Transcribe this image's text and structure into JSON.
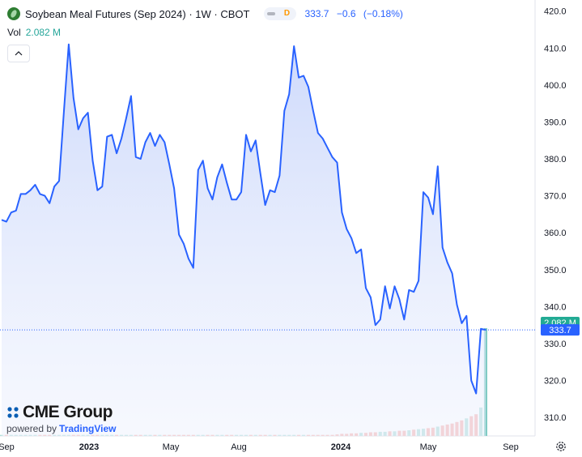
{
  "header": {
    "title": "Soybean Meal Futures (Sep 2024) · 1W · CBOT",
    "pill_label": "D",
    "last": "333.7",
    "change": "−0.6",
    "change_pct": "(−0.18%)"
  },
  "volume": {
    "label": "Vol",
    "value": "2.082 M"
  },
  "branding": {
    "logo": "CME Group",
    "powered_by": "powered by",
    "platform": "TradingView"
  },
  "icons": {
    "collapse": "chevron-up-icon",
    "settings": "gear-icon",
    "symbol": "soybean-leaf-icon"
  },
  "colors": {
    "line": "#2962ff",
    "fill": "#dfe7fd",
    "volume_up": "#26a69a",
    "volume_down": "#ef5350",
    "price_label": "#22ab94",
    "last_label": "#2962ff"
  },
  "chart_data": {
    "type": "area",
    "y_axis": {
      "min": 305,
      "max": 423,
      "ticks": [
        310,
        320,
        330,
        340,
        350,
        360,
        370,
        380,
        390,
        400,
        410,
        420
      ],
      "position": "right"
    },
    "x_axis": {
      "labels": [
        "Sep",
        "2023",
        "May",
        "Aug",
        "2024",
        "May",
        "Sep"
      ]
    },
    "price_labels": {
      "volume": "2.082 M",
      "last": "333.7"
    },
    "series": [
      {
        "values": [
          363.5,
          363,
          365.5,
          366,
          370.5,
          370.5,
          371.5,
          373,
          370.5,
          370,
          368,
          372.5,
          374,
          393,
          411,
          396.5,
          388,
          391,
          392.5,
          379.5,
          371.5,
          372.5,
          386,
          386.5,
          381.5,
          385.5,
          391,
          397,
          380.5,
          380,
          384.5,
          387,
          383.5,
          386.5,
          384.5,
          378.5,
          372,
          359.5,
          357,
          353,
          350.5,
          377,
          379.5,
          372,
          369,
          375,
          378.5,
          373.5,
          369,
          369,
          371,
          386.5,
          382,
          385,
          376,
          367.5,
          371.5,
          371,
          375.5,
          393,
          397.5,
          410.5,
          402,
          402.5,
          399.5,
          393,
          387,
          385.5,
          383,
          380.5,
          379,
          365.5,
          361,
          358.5,
          354.5,
          355.5,
          345,
          342.5,
          335,
          336.5,
          345.5,
          339.5,
          345.5,
          342,
          336.5,
          344.5,
          344,
          347,
          371,
          369.5,
          365,
          378,
          356,
          352,
          349,
          340.5,
          335.5,
          337.5,
          320,
          316.5,
          334,
          333.7
        ]
      },
      {
        "name": "Volume",
        "values": [
          0.02,
          0.02,
          0.02,
          0.02,
          0.02,
          0.02,
          0.02,
          0.02,
          0.02,
          0.02,
          0.02,
          0.02,
          0.02,
          0.02,
          0.02,
          0.02,
          0.02,
          0.02,
          0.02,
          0.02,
          0.02,
          0.02,
          0.02,
          0.02,
          0.02,
          0.02,
          0.02,
          0.02,
          0.02,
          0.02,
          0.02,
          0.02,
          0.02,
          0.02,
          0.02,
          0.02,
          0.02,
          0.02,
          0.02,
          0.02,
          0.02,
          0.02,
          0.02,
          0.02,
          0.02,
          0.02,
          0.02,
          0.02,
          0.02,
          0.02,
          0.02,
          0.02,
          0.02,
          0.02,
          0.02,
          0.02,
          0.02,
          0.02,
          0.02,
          0.02,
          0.02,
          0.02,
          0.02,
          0.02,
          0.02,
          0.02,
          0.02,
          0.02,
          0.02,
          0.02,
          0.03,
          0.04,
          0.04,
          0.05,
          0.05,
          0.06,
          0.06,
          0.07,
          0.07,
          0.08,
          0.08,
          0.09,
          0.09,
          0.1,
          0.1,
          0.11,
          0.12,
          0.13,
          0.14,
          0.15,
          0.16,
          0.18,
          0.2,
          0.22,
          0.24,
          0.27,
          0.3,
          0.34,
          0.38,
          0.42,
          0.55,
          2.082
        ]
      }
    ]
  }
}
